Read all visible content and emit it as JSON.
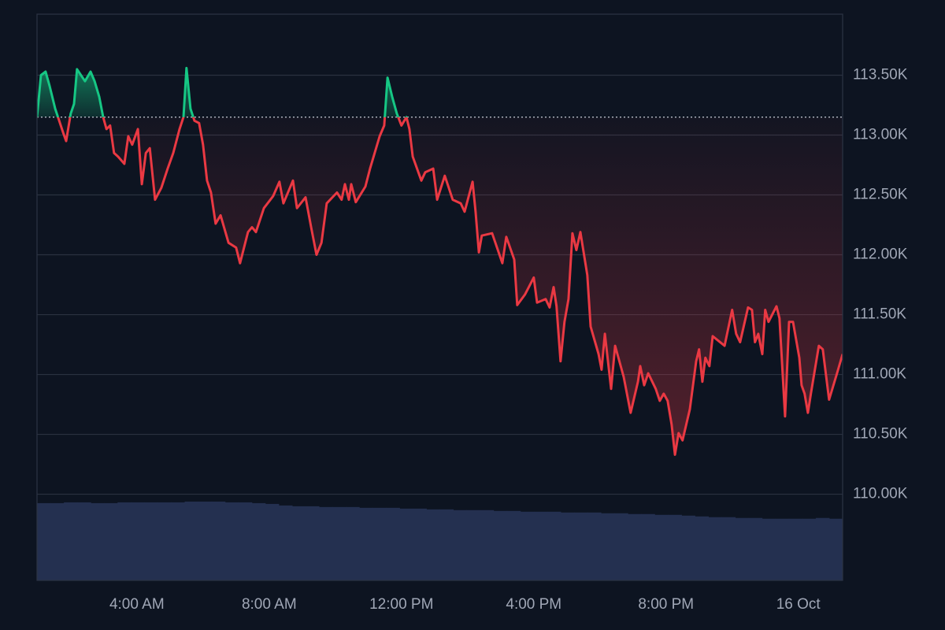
{
  "chart_data": {
    "type": "line",
    "baseline": 113150,
    "up_color": "#16c784",
    "down_color": "#ea3943",
    "grid": true,
    "xlim": [
      0.98,
      25.34
    ],
    "xticks": [
      {
        "value": 4,
        "label": "4:00 AM"
      },
      {
        "value": 8,
        "label": "8:00 AM"
      },
      {
        "value": 12,
        "label": "12:00 PM"
      },
      {
        "value": 16,
        "label": "4:00 PM"
      },
      {
        "value": 20,
        "label": "8:00 PM"
      },
      {
        "value": 24,
        "label": "16 Oct"
      }
    ],
    "ylim": [
      109280,
      114010
    ],
    "yticks": [
      {
        "value": 110000,
        "label": "110.00K"
      },
      {
        "value": 110500,
        "label": "110.50K"
      },
      {
        "value": 111000,
        "label": "111.00K"
      },
      {
        "value": 111500,
        "label": "111.50K"
      },
      {
        "value": 112000,
        "label": "112.00K"
      },
      {
        "value": 112500,
        "label": "112.50K"
      },
      {
        "value": 113000,
        "label": "113.00K"
      },
      {
        "value": 113500,
        "label": "113.50K"
      }
    ],
    "x": [
      0.98,
      1.1,
      1.24,
      1.36,
      1.53,
      1.77,
      1.86,
      2.0,
      2.1,
      2.19,
      2.43,
      2.6,
      2.72,
      2.86,
      2.98,
      3.08,
      3.19,
      3.31,
      3.43,
      3.62,
      3.74,
      3.86,
      4.03,
      4.15,
      4.27,
      4.39,
      4.55,
      4.74,
      4.93,
      5.1,
      5.29,
      5.41,
      5.5,
      5.62,
      5.74,
      5.88,
      6.0,
      6.12,
      6.24,
      6.38,
      6.53,
      6.77,
      7.0,
      7.12,
      7.36,
      7.48,
      7.6,
      7.84,
      8.12,
      8.31,
      8.43,
      8.72,
      8.84,
      9.1,
      9.27,
      9.43,
      9.58,
      9.74,
      10.05,
      10.19,
      10.29,
      10.41,
      10.48,
      10.62,
      10.91,
      11.05,
      11.34,
      11.48,
      11.58,
      11.72,
      11.86,
      12.0,
      12.15,
      12.24,
      12.34,
      12.6,
      12.72,
      12.96,
      13.08,
      13.31,
      13.55,
      13.79,
      13.91,
      14.15,
      14.24,
      14.34,
      14.43,
      14.74,
      15.05,
      15.17,
      15.41,
      15.5,
      15.74,
      16.0,
      16.1,
      16.36,
      16.48,
      16.6,
      16.69,
      16.81,
      16.93,
      17.05,
      17.17,
      17.29,
      17.41,
      17.62,
      17.72,
      17.96,
      18.05,
      18.15,
      18.34,
      18.46,
      18.72,
      18.93,
      19.15,
      19.22,
      19.34,
      19.46,
      19.69,
      19.81,
      19.93,
      20.05,
      20.17,
      20.27,
      20.38,
      20.5,
      20.72,
      20.91,
      21.0,
      21.1,
      21.19,
      21.31,
      21.41,
      21.77,
      22.0,
      22.12,
      22.24,
      22.48,
      22.6,
      22.69,
      22.79,
      22.91,
      23.0,
      23.1,
      23.34,
      23.43,
      23.5,
      23.6,
      23.72,
      23.84,
      24.03,
      24.1,
      24.19,
      24.29,
      24.38,
      24.62,
      24.74,
      24.93,
      25.17,
      25.34
    ],
    "values": [
      113150,
      113500,
      113530,
      113410,
      113220,
      113020,
      112950,
      113180,
      113260,
      113550,
      113450,
      113530,
      113450,
      113320,
      113150,
      113050,
      113080,
      112850,
      112820,
      112760,
      112990,
      112920,
      113050,
      112590,
      112850,
      112890,
      112460,
      112560,
      112720,
      112850,
      113050,
      113150,
      113560,
      113220,
      113120,
      113100,
      112920,
      112620,
      112520,
      112260,
      112330,
      112100,
      112060,
      111930,
      112190,
      112230,
      112190,
      112390,
      112490,
      112610,
      112430,
      112620,
      112390,
      112480,
      112230,
      112000,
      112100,
      112430,
      112520,
      112460,
      112590,
      112460,
      112590,
      112440,
      112570,
      112720,
      112990,
      113080,
      113480,
      113320,
      113180,
      113080,
      113150,
      113050,
      112820,
      112620,
      112690,
      112720,
      112460,
      112660,
      112460,
      112430,
      112360,
      112610,
      112360,
      112020,
      112160,
      112180,
      111930,
      112150,
      111960,
      111580,
      111670,
      111810,
      111600,
      111630,
      111560,
      111730,
      111570,
      111110,
      111440,
      111630,
      112180,
      112040,
      112190,
      111830,
      111400,
      111170,
      111040,
      111340,
      110880,
      111240,
      110980,
      110680,
      110940,
      111070,
      110910,
      111010,
      110880,
      110780,
      110840,
      110780,
      110580,
      110330,
      110510,
      110450,
      110710,
      111110,
      111210,
      110940,
      111140,
      111070,
      111320,
      111240,
      111540,
      111340,
      111270,
      111560,
      111540,
      111270,
      111340,
      111170,
      111540,
      111440,
      111570,
      111470,
      111140,
      110650,
      111440,
      111440,
      111140,
      110910,
      110840,
      110680,
      110840,
      111240,
      111210,
      110790,
      111010,
      111170
    ],
    "volume": {
      "color": "#243050",
      "y2lim": [
        0,
        110
      ],
      "values": [
        99,
        99,
        100,
        100,
        99,
        99,
        100,
        100,
        100,
        100,
        100,
        101,
        101,
        101,
        100,
        100,
        99,
        98,
        96,
        95,
        95,
        94,
        94,
        94,
        93,
        93,
        93,
        92,
        92,
        91,
        91,
        90,
        90,
        90,
        89,
        89,
        88,
        88,
        88,
        87,
        87,
        87,
        86,
        86,
        85,
        85,
        84,
        84,
        83,
        82,
        81,
        81,
        80,
        80,
        79,
        79,
        79,
        79,
        80,
        79
      ]
    }
  }
}
